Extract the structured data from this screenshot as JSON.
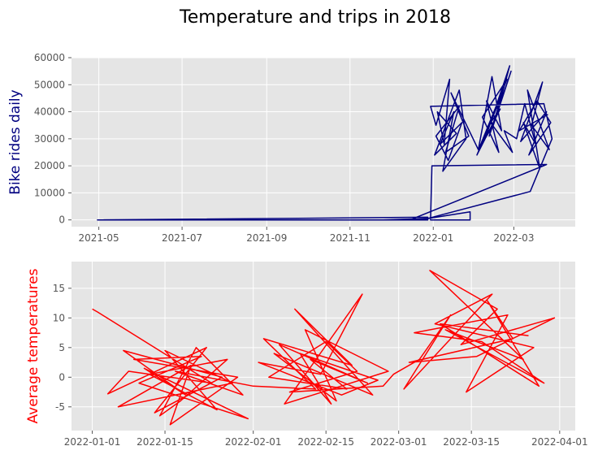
{
  "figure": {
    "title": "Temperature and trips in 2018",
    "style": "ggplot",
    "background": "#ffffff",
    "axes_background": "#e5e5e5",
    "grid_color": "#ffffff"
  },
  "chart_data": [
    {
      "type": "line",
      "ylabel": "Bike rides daily",
      "color": "#000080",
      "grid": true,
      "x_tick_labels": [
        "2021-05",
        "2021-07",
        "2021-09",
        "2021-11",
        "2022-01",
        "2022-03"
      ],
      "y_tick_labels": [
        "0",
        "10000",
        "20000",
        "30000",
        "40000",
        "50000",
        "60000"
      ],
      "ylim": [
        -2500,
        60000
      ],
      "series": [
        {
          "x": [
            "2021-04-30",
            "2021-07-24",
            "2021-08-17",
            "2021-11-25",
            "2021-12-28",
            "2022-01-28",
            "2022-01-28",
            "2021-12-30",
            "2021-12-31",
            "2022-03-25",
            "2021-12-15",
            "2021-12-28",
            "2021-12-28",
            "2021-04-30",
            "2021-06-10",
            "2021-08-17",
            "2021-12-24",
            "2022-03-13",
            "2022-03-29",
            "2022-03-23",
            "2021-12-30",
            "2022-01-03",
            "2022-01-13",
            "2022-01-09",
            "2022-01-04",
            "2022-01-18",
            "2022-01-02",
            "2022-01-20",
            "2022-01-25",
            "2022-01-08",
            "2022-01-16",
            "2022-01-06",
            "2022-01-22",
            "2022-01-12",
            "2022-01-03",
            "2022-01-20",
            "2022-01-10",
            "2022-01-27",
            "2022-01-14",
            "2022-02-03",
            "2022-02-13",
            "2022-02-20",
            "2022-02-09",
            "2022-02-18",
            "2022-02-06",
            "2022-02-24",
            "2022-02-04",
            "2022-02-14",
            "2022-02-27",
            "2022-02-11",
            "2022-02-21",
            "2022-02-02",
            "2022-02-16",
            "2022-02-26",
            "2022-02-08",
            "2022-02-19",
            "2022-02-12",
            "2022-02-28",
            "2022-02-22",
            "2022-03-03",
            "2022-03-09",
            "2022-03-17",
            "2022-03-08",
            "2022-03-20",
            "2022-03-11",
            "2022-03-27",
            "2022-03-14",
            "2022-03-22",
            "2022-03-06",
            "2022-03-25",
            "2022-03-12",
            "2022-03-28",
            "2022-03-18",
            "2022-03-05",
            "2022-03-26"
          ],
          "y": [
            0,
            0,
            0,
            0,
            500,
            3000,
            0,
            0,
            20000,
            20500,
            0,
            0,
            1000,
            0,
            0,
            0,
            0,
            10500,
            30000,
            43000,
            42000,
            35000,
            52000,
            28000,
            40000,
            32000,
            24000,
            48000,
            30000,
            18000,
            40000,
            28000,
            36000,
            22000,
            31000,
            42000,
            25000,
            31000,
            47000,
            26000,
            53000,
            33000,
            44000,
            25000,
            38000,
            52000,
            27000,
            35000,
            55000,
            31000,
            47000,
            24000,
            38000,
            57000,
            30000,
            41000,
            36000,
            25000,
            33000,
            30000,
            43000,
            28000,
            36000,
            19000,
            48000,
            26000,
            35000,
            51000,
            29000,
            40000,
            24000,
            36000,
            44000,
            33000,
            39000
          ]
        }
      ]
    },
    {
      "type": "line",
      "ylabel": "Average temperatures",
      "color": "#ff0000",
      "grid": true,
      "x_tick_labels": [
        "2022-01-01",
        "2022-01-15",
        "2022-02-01",
        "2022-02-15",
        "2022-03-01",
        "2022-03-15",
        "2022-04-01"
      ],
      "y_tick_labels": [
        "-5",
        "0",
        "5",
        "10",
        "15"
      ],
      "ylim": [
        -9,
        19.5
      ],
      "series": [
        {
          "x": [
            "2022-01-01",
            "2022-01-02",
            "2022-01-24",
            "2022-01-08",
            "2022-01-04",
            "2022-01-23",
            "2022-01-13",
            "2022-01-26",
            "2022-01-07",
            "2022-01-19",
            "2022-01-11",
            "2022-01-31",
            "2022-01-10",
            "2022-01-22",
            "2022-01-09",
            "2022-01-29",
            "2022-01-16",
            "2022-01-20",
            "2022-01-06",
            "2022-01-28",
            "2022-01-15",
            "2022-01-25",
            "2022-01-12",
            "2022-01-27",
            "2022-01-18",
            "2022-01-14",
            "2022-01-21",
            "2022-01-30",
            "2022-01-17",
            "2022-02-01",
            "2022-02-13",
            "2022-02-03",
            "2022-02-20",
            "2022-02-09",
            "2022-02-24",
            "2022-02-05",
            "2022-02-17",
            "2022-02-11",
            "2022-02-27",
            "2022-02-07",
            "2022-02-22",
            "2022-02-14",
            "2022-02-02",
            "2022-02-18",
            "2022-02-25",
            "2022-02-10",
            "2022-02-16",
            "2022-02-06",
            "2022-02-23",
            "2022-02-12",
            "2022-02-19",
            "2022-02-04",
            "2022-02-15",
            "2022-02-21",
            "2022-02-08",
            "2022-02-26",
            "2022-02-28",
            "2022-03-05",
            "2022-03-11",
            "2022-03-02",
            "2022-03-19",
            "2022-03-08",
            "2022-03-27",
            "2022-03-14",
            "2022-03-22",
            "2022-03-04",
            "2022-03-17",
            "2022-03-29",
            "2022-03-10",
            "2022-03-25",
            "2022-03-07",
            "2022-03-20",
            "2022-03-13",
            "2022-03-31",
            "2022-03-16",
            "2022-03-03",
            "2022-03-23",
            "2022-03-18",
            "2022-03-28",
            "2022-03-09",
            "2022-03-26"
          ],
          "y": [
            11.5,
            11,
            -1,
            1,
            -2.8,
            5,
            -6,
            0,
            4.5,
            -3,
            1.5,
            -7,
            -1,
            3.5,
            3,
            0,
            -8,
            2,
            -5,
            -1,
            4.5,
            -5.5,
            0.5,
            3,
            -4,
            -6.5,
            5,
            -3,
            1,
            -1.5,
            -2,
            6.5,
            2,
            11.5,
            -3,
            4,
            -4,
            8,
            1,
            -4.5,
            14,
            0.5,
            2.5,
            -3,
            -0.5,
            4,
            -4.5,
            5.5,
            -1,
            3,
            -2,
            0,
            6,
            1,
            -2.5,
            -1.5,
            0.5,
            3,
            10.5,
            -2,
            14,
            9,
            5,
            -2.5,
            10.5,
            7.5,
            6,
            -1,
            8,
            3,
            18,
            11.5,
            5.5,
            10,
            3.5,
            2.5,
            6.5,
            13,
            -1.5,
            9,
            7
          ]
        }
      ]
    }
  ]
}
